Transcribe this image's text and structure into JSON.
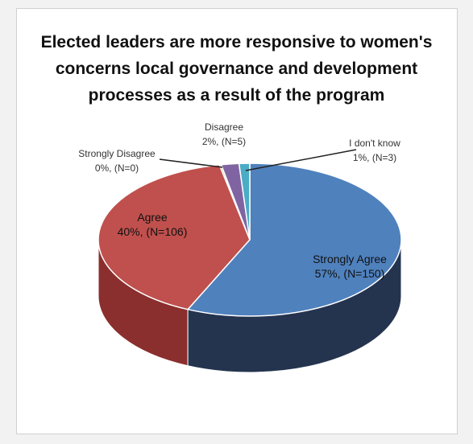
{
  "chart_data": {
    "type": "pie",
    "title": "Elected leaders are more responsive to women's\nconcerns local governance and development\nprocesses as a result of the program",
    "slices": [
      {
        "name": "Strongly Agree",
        "percent": 57,
        "count": 150,
        "label_line1": "Strongly Agree",
        "label_line2": "57%, (N=150)",
        "color": "#4f81bd",
        "side_color": "#24344f"
      },
      {
        "name": "Agree",
        "percent": 40,
        "count": 106,
        "label_line1": "Agree",
        "label_line2": "40%, (N=106)",
        "color": "#c0504d",
        "side_color": "#8a2f2d"
      },
      {
        "name": "Strongly Disagree",
        "percent": 0,
        "count": 0,
        "label_line1": "Strongly Disagree",
        "label_line2": "0%, (N=0)",
        "color": "#9bbb59",
        "side_color": "#6b8a35"
      },
      {
        "name": "Disagree",
        "percent": 2,
        "count": 5,
        "label_line1": "Disagree",
        "label_line2": "2%, (N=5)",
        "color": "#8064a2",
        "side_color": "#533f6f"
      },
      {
        "name": "I don't know",
        "percent": 1,
        "count": 3,
        "label_line1": "I don't know",
        "label_line2": "1%, (N=3)",
        "color": "#4bacc6",
        "side_color": "#2d7688"
      }
    ],
    "style": "3d-pie"
  }
}
